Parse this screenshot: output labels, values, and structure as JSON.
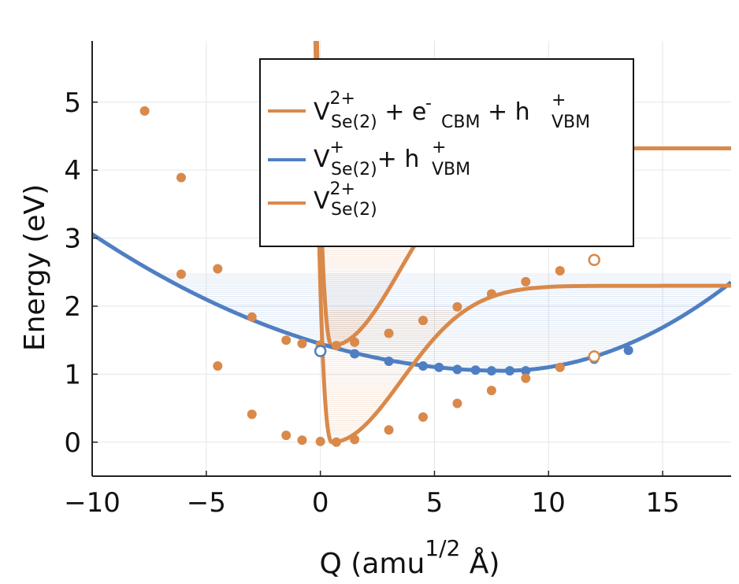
{
  "chart_data": {
    "type": "line",
    "xlabel": {
      "main": "Q (amu",
      "sup": "1/2",
      "tail": " Å)"
    },
    "ylabel": "Energy  (eV)",
    "xlim": [
      -10,
      18
    ],
    "ylim": [
      -0.5,
      5.9
    ],
    "x_ticks": [
      -10,
      -5,
      0,
      5,
      10,
      15
    ],
    "x_tick_labels": [
      "−10",
      "−5",
      "0",
      "5",
      "10",
      "15"
    ],
    "y_ticks": [
      0,
      1,
      2,
      3,
      4,
      5
    ],
    "y_tick_labels": [
      "0",
      "1",
      "2",
      "3",
      "4",
      "5"
    ],
    "grid": true,
    "legend_position": "top-right",
    "colors": {
      "orange": "#d9894a",
      "blue": "#4f7fc2",
      "axis": "#222222",
      "grid": "#e6e6e6"
    },
    "series": [
      {
        "id": "upper",
        "name": "V_Se(2)^2+ + e-_CBM + h+_VBM",
        "color": "#d9894a",
        "legend": {
          "v": "V",
          "sup1": "2+",
          "sub1": "Se(2)",
          "plus1": " + e",
          "sup2": "-",
          "sub2": "CBM",
          "plus2": " + h",
          "sup3": "+",
          "sub3": "VBM"
        },
        "curve": {
          "x0": 0.5,
          "y0": 1.42,
          "a": 5.4,
          "c": 1.0,
          "k": 0.054,
          "d": 2.9
        },
        "markers": [
          {
            "x": -7.7,
            "y": 4.87
          },
          {
            "x": -6.1,
            "y": 3.89
          },
          {
            "x": -4.5,
            "y": 2.55
          },
          {
            "x": -3.0,
            "y": 1.84
          },
          {
            "x": -1.5,
            "y": 1.5
          },
          {
            "x": -0.8,
            "y": 1.45
          },
          {
            "x": 0.0,
            "y": 1.43
          },
          {
            "x": 0.7,
            "y": 1.42
          },
          {
            "x": 1.5,
            "y": 1.47
          },
          {
            "x": 3.0,
            "y": 1.6
          },
          {
            "x": 4.5,
            "y": 1.79
          },
          {
            "x": 6.0,
            "y": 1.99
          },
          {
            "x": 7.5,
            "y": 2.18
          },
          {
            "x": 9.0,
            "y": 2.36
          },
          {
            "x": 10.5,
            "y": 2.52
          }
        ],
        "open_marker": {
          "x": 12.0,
          "y": 2.68
        }
      },
      {
        "id": "middle",
        "name": "V_Se(2)^+ + h+_VBM",
        "color": "#4f7fc2",
        "legend": {
          "v": "V",
          "sup1": "+",
          "sub1": "Se(2)",
          "plus1": "+ h",
          "sup2": "+",
          "sub2": "VBM"
        },
        "curve": {
          "x0": 8.0,
          "y0": 1.05,
          "a": 0.0062,
          "aR": 0.013
        },
        "markers": [
          {
            "x": 1.5,
            "y": 1.3
          },
          {
            "x": 3.0,
            "y": 1.19
          },
          {
            "x": 4.5,
            "y": 1.12
          },
          {
            "x": 5.2,
            "y": 1.1
          },
          {
            "x": 6.0,
            "y": 1.07
          },
          {
            "x": 6.8,
            "y": 1.06
          },
          {
            "x": 7.5,
            "y": 1.05
          },
          {
            "x": 8.3,
            "y": 1.05
          },
          {
            "x": 9.0,
            "y": 1.05
          },
          {
            "x": 12.0,
            "y": 1.22
          },
          {
            "x": 13.5,
            "y": 1.35
          }
        ],
        "open_marker": {
          "x": 0.0,
          "y": 1.34
        }
      },
      {
        "id": "lower",
        "name": "V_Se(2)^2+",
        "color": "#d9894a",
        "legend": {
          "v": "V",
          "sup1": "2+",
          "sub1": "Se(2)"
        },
        "curve": {
          "x0": 0.5,
          "y0": 0.0,
          "a": 5.4,
          "c": 1.0,
          "k": 0.054,
          "d": 2.3
        },
        "markers": [
          {
            "x": -6.1,
            "y": 2.47
          },
          {
            "x": -4.5,
            "y": 1.12
          },
          {
            "x": -3.0,
            "y": 0.41
          },
          {
            "x": -1.5,
            "y": 0.1
          },
          {
            "x": -0.8,
            "y": 0.03
          },
          {
            "x": 0.0,
            "y": 0.01
          },
          {
            "x": 0.7,
            "y": 0.0
          },
          {
            "x": 1.5,
            "y": 0.04
          },
          {
            "x": 3.0,
            "y": 0.18
          },
          {
            "x": 4.5,
            "y": 0.37
          },
          {
            "x": 6.0,
            "y": 0.57
          },
          {
            "x": 7.5,
            "y": 0.76
          },
          {
            "x": 9.0,
            "y": 0.94
          },
          {
            "x": 10.5,
            "y": 1.1
          }
        ],
        "open_marker": {
          "x": 12.0,
          "y": 1.26
        }
      }
    ],
    "bands": [
      {
        "series": "upper",
        "top": 3.38,
        "color": "#d9894a"
      },
      {
        "series": "middle",
        "top": 2.48,
        "color": "#6b96d0"
      },
      {
        "series": "lower",
        "top": 1.95,
        "color": "#d9894a"
      }
    ]
  }
}
